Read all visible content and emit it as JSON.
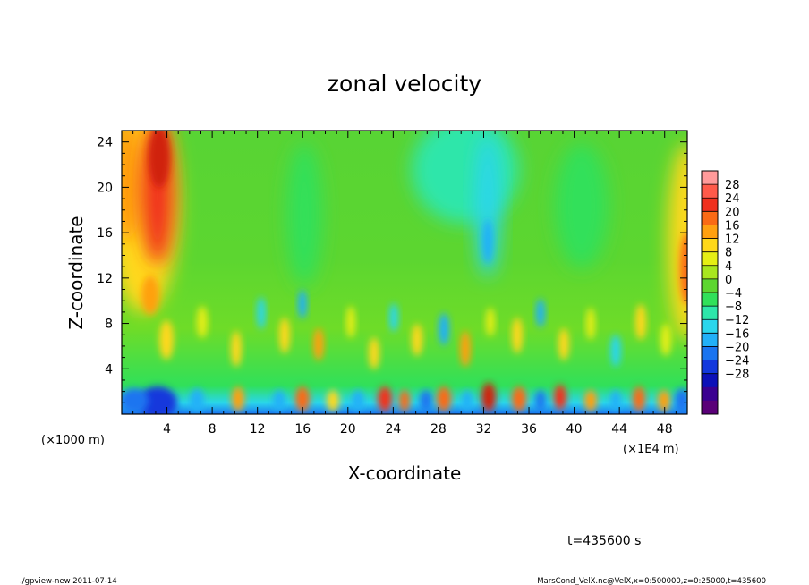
{
  "chart_data": {
    "type": "heatmap",
    "title": "zonal velocity",
    "xlabel": "X-coordinate",
    "ylabel": "Z-coordinate",
    "x_unit": "(×1E4 m)",
    "y_unit": "(×1000 m)",
    "xlim": [
      0,
      50
    ],
    "ylim": [
      0,
      25
    ],
    "x_ticks": [
      "4",
      "8",
      "12",
      "16",
      "20",
      "24",
      "28",
      "32",
      "36",
      "40",
      "44",
      "48"
    ],
    "y_ticks": [
      "4",
      "8",
      "12",
      "16",
      "20",
      "24"
    ],
    "colorbar": {
      "labels": [
        "28",
        "24",
        "20",
        "16",
        "12",
        "8",
        "4",
        "0",
        "−4",
        "−8",
        "−12",
        "−16",
        "−20",
        "−24",
        "−28"
      ],
      "colors": [
        "#ff9a9a",
        "#ff5a4a",
        "#f0301e",
        "#fa6a14",
        "#ffa010",
        "#ffd81a",
        "#e6ee14",
        "#a8e61e",
        "#5cd630",
        "#30e05a",
        "#2de6aa",
        "#2ad6ec",
        "#22b0f8",
        "#1a74f0",
        "#1238dc",
        "#0c10b8",
        "#3a0090",
        "#5a0078"
      ]
    },
    "grid": false,
    "legend": "right"
  },
  "annotations": {
    "time": "t=435600 s",
    "footer_left": "./gpview-new  2011-07-14",
    "footer_right": "MarsCond_VelX.nc@VelX,x=0:500000,z=0:25000,t=435600"
  }
}
